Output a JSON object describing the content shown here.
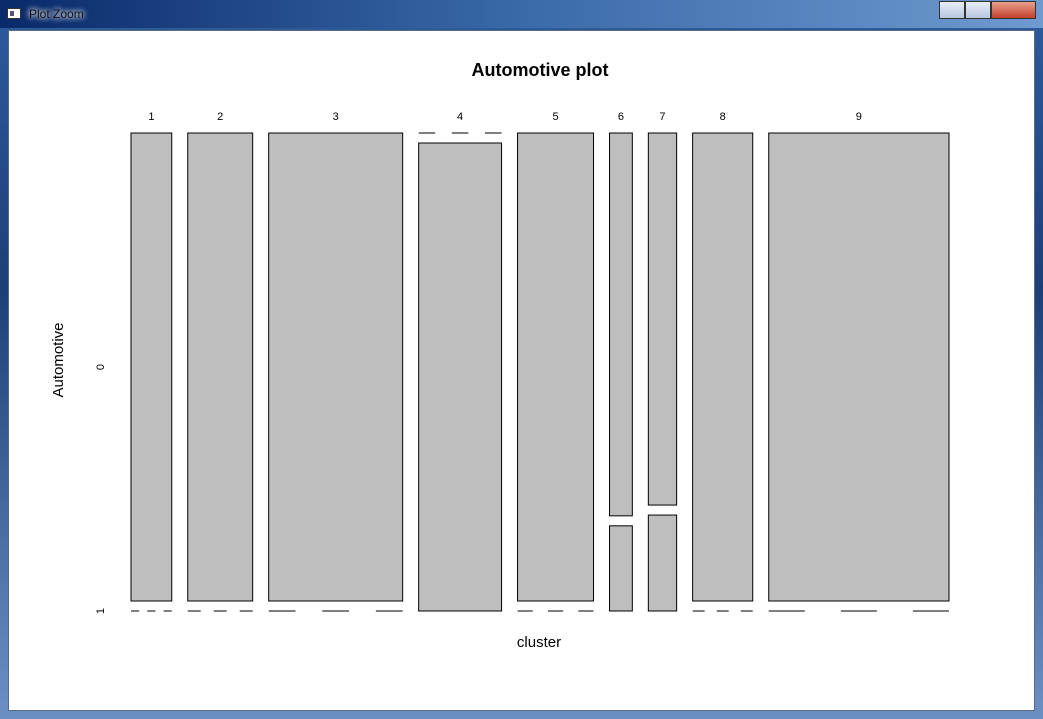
{
  "window": {
    "title": "Plot Zoom"
  },
  "chart_data": {
    "type": "mosaic",
    "title": "Automotive plot",
    "x_label": "cluster",
    "y_label": "Automotive",
    "categories": [
      "1",
      "2",
      "3",
      "4",
      "5",
      "6",
      "7",
      "8",
      "9"
    ],
    "column_shares": [
      5.9,
      9.4,
      19.4,
      12.0,
      11.0,
      3.3,
      4.1,
      8.7,
      26.1
    ],
    "series": [
      {
        "name": "0",
        "color": "#bebebe",
        "values": [
          100,
          100,
          100,
          0,
          100,
          81.8,
          79.5,
          100,
          100
        ]
      },
      {
        "name": "1",
        "color": "#bebebe",
        "values": [
          0,
          0,
          0,
          100,
          0,
          18.2,
          20.5,
          0,
          0
        ]
      }
    ]
  }
}
